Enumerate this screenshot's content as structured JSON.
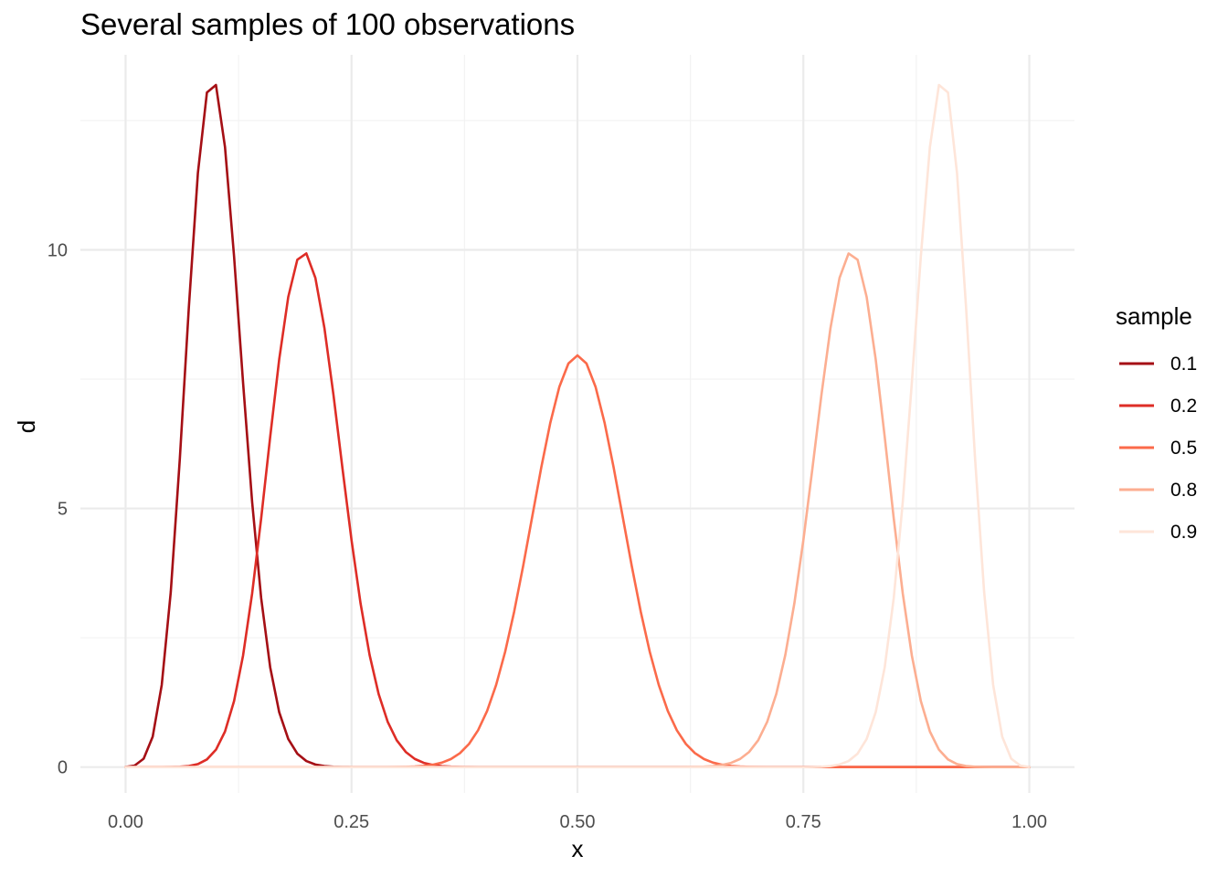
{
  "chart_data": {
    "type": "line",
    "title": "Several samples of 100 observations",
    "xlabel": "x",
    "ylabel": "d",
    "xlim": [
      0,
      1
    ],
    "ylim": [
      0,
      13.27
    ],
    "x_ticks": [
      {
        "value": 0,
        "label": "0.00"
      },
      {
        "value": 0.25,
        "label": "0.25"
      },
      {
        "value": 0.5,
        "label": "0.50"
      },
      {
        "value": 0.75,
        "label": "0.75"
      },
      {
        "value": 1,
        "label": "1.00"
      }
    ],
    "y_ticks": [
      {
        "value": 0,
        "label": "0"
      },
      {
        "value": 5,
        "label": "5"
      },
      {
        "value": 10,
        "label": "10"
      }
    ],
    "grid": true,
    "legend": {
      "title": "sample",
      "placement": "right"
    },
    "series": [
      {
        "name": "0.1",
        "color": "#a50f15",
        "n": 100,
        "p": 0.1
      },
      {
        "name": "0.2",
        "color": "#de2d26",
        "n": 100,
        "p": 0.2
      },
      {
        "name": "0.5",
        "color": "#fb6a4a",
        "n": 100,
        "p": 0.5
      },
      {
        "name": "0.8",
        "color": "#fcae91",
        "n": 100,
        "p": 0.8
      },
      {
        "name": "0.9",
        "color": "#fee5d9",
        "n": 100,
        "p": 0.9
      }
    ]
  }
}
